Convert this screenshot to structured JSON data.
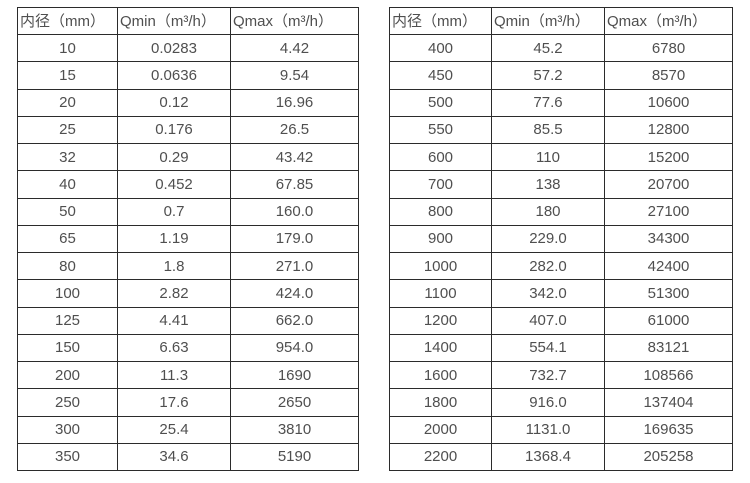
{
  "page": {
    "background": "#ffffff",
    "text_color": "#4f4f4f",
    "border_color": "#2b2b2b"
  },
  "chart_data": [
    {
      "type": "table",
      "name": "small-diameter-flow-table",
      "columns": [
        "内径（mm）",
        "Qmin（m³/h）",
        "Qmax（m³/h）"
      ],
      "rows": [
        [
          "10",
          "0.0283",
          "4.42"
        ],
        [
          "15",
          "0.0636",
          "9.54"
        ],
        [
          "20",
          "0.12",
          "16.96"
        ],
        [
          "25",
          "0.176",
          "26.5"
        ],
        [
          "32",
          "0.29",
          "43.42"
        ],
        [
          "40",
          "0.452",
          "67.85"
        ],
        [
          "50",
          "0.7",
          "160.0"
        ],
        [
          "65",
          "1.19",
          "179.0"
        ],
        [
          "80",
          "1.8",
          "271.0"
        ],
        [
          "100",
          "2.82",
          "424.0"
        ],
        [
          "125",
          "4.41",
          "662.0"
        ],
        [
          "150",
          "6.63",
          "954.0"
        ],
        [
          "200",
          "11.3",
          "1690"
        ],
        [
          "250",
          "17.6",
          "2650"
        ],
        [
          "300",
          "25.4",
          "3810"
        ],
        [
          "350",
          "34.6",
          "5190"
        ]
      ]
    },
    {
      "type": "table",
      "name": "large-diameter-flow-table",
      "columns": [
        "内径（mm）",
        "Qmin（m³/h）",
        "Qmax（m³/h）"
      ],
      "rows": [
        [
          "400",
          "45.2",
          "6780"
        ],
        [
          "450",
          "57.2",
          "8570"
        ],
        [
          "500",
          "77.6",
          "10600"
        ],
        [
          "550",
          "85.5",
          "12800"
        ],
        [
          "600",
          "110",
          "15200"
        ],
        [
          "700",
          "138",
          "20700"
        ],
        [
          "800",
          "180",
          "27100"
        ],
        [
          "900",
          "229.0",
          "34300"
        ],
        [
          "1000",
          "282.0",
          "42400"
        ],
        [
          "1100",
          "342.0",
          "51300"
        ],
        [
          "1200",
          "407.0",
          "61000"
        ],
        [
          "1400",
          "554.1",
          "83121"
        ],
        [
          "1600",
          "732.7",
          "108566"
        ],
        [
          "1800",
          "916.0",
          "137404"
        ],
        [
          "2000",
          "1131.0",
          "169635"
        ],
        [
          "2200",
          "1368.4",
          "205258"
        ]
      ]
    }
  ]
}
